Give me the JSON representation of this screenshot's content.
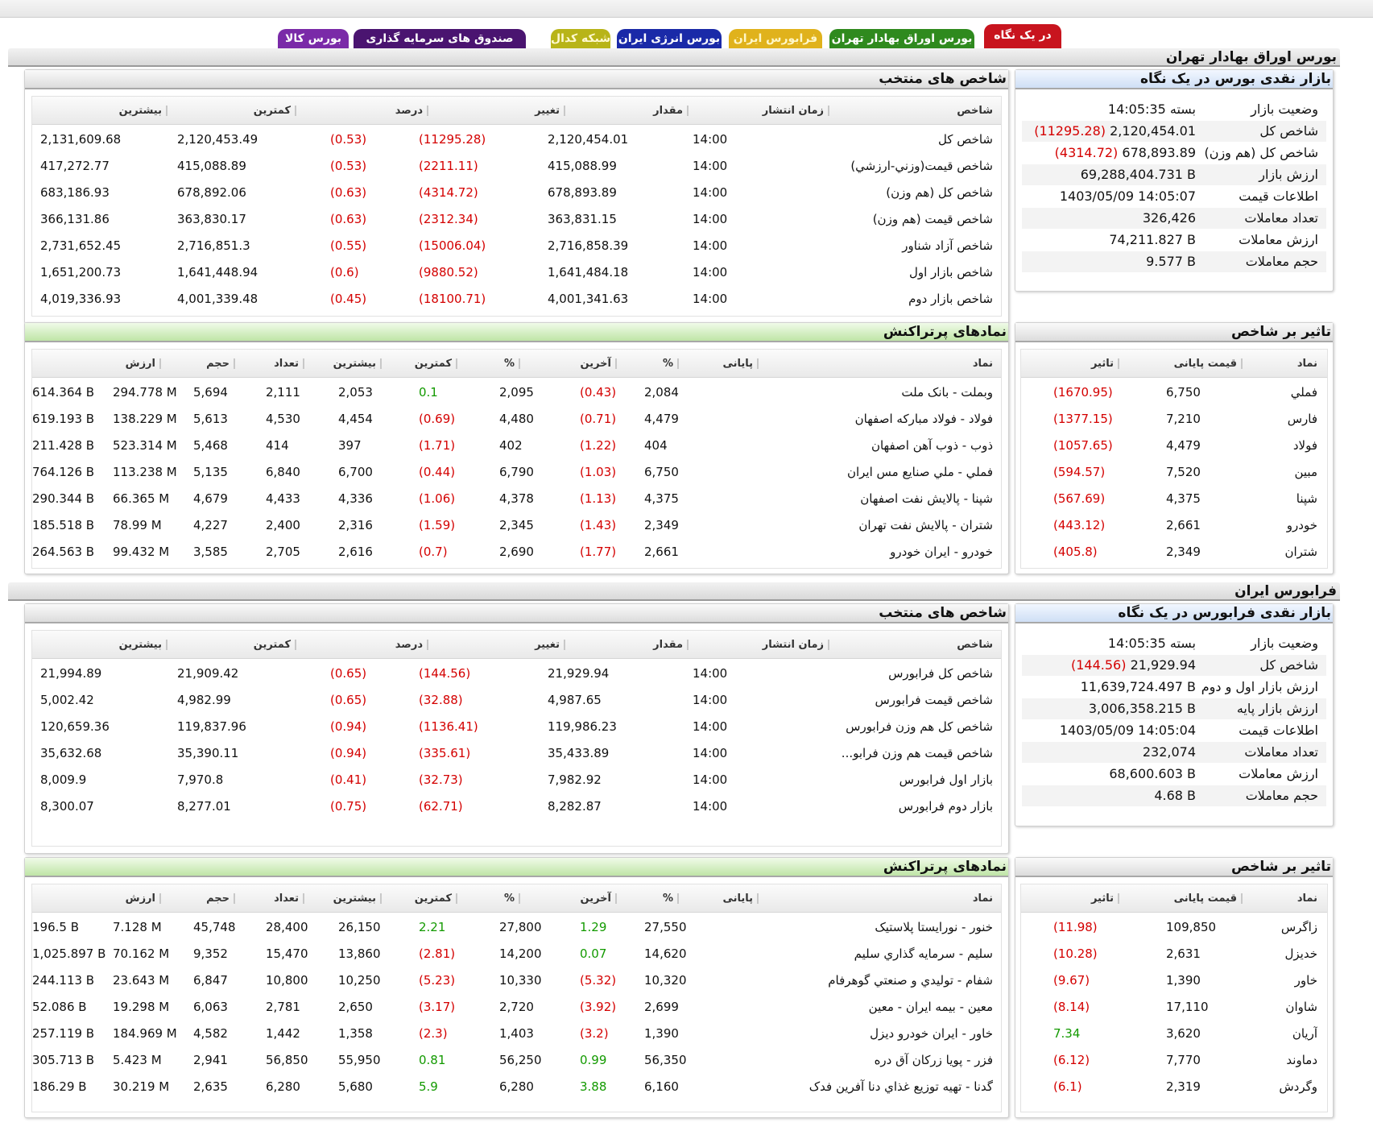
{
  "tabs": [
    {
      "label": "در یک نگاه",
      "bg": "#c8141e",
      "fg": "#ffffff",
      "active": true
    },
    {
      "label": "بورس اوراق بهادار تهران",
      "bg": "#2f8a1e",
      "fg": "#ffffff"
    },
    {
      "label": "فرابورس ایران",
      "bg": "#e0b21c",
      "fg": "#fff7c8"
    },
    {
      "label": "بورس انرژی ایران",
      "bg": "#1a2aa8",
      "fg": "#ffffff"
    },
    {
      "label": "شبکه کدال",
      "bg": "#b8b418",
      "fg": "#fff9d0"
    },
    {
      "label": "صندوق های سرمایه گذاری",
      "bg": "#4a1470",
      "fg": "#ffffff"
    },
    {
      "label": "بورس کالا",
      "bg": "#7a2aa8",
      "fg": "#ffffff"
    }
  ],
  "colors": {
    "negative": "#d40000",
    "positive": "#139a00"
  },
  "tse": {
    "title": "بورس اوراق بهادار تهران",
    "glance": {
      "title": "بازار نقدی بورس در یک نگاه",
      "rows": [
        {
          "label": "وضعیت بازار",
          "value": "بسته 14:05:35"
        },
        {
          "label": "شاخص کل",
          "value": "2,120,454.01",
          "change": "(11295.28)"
        },
        {
          "label": "شاخص کل (هم وزن)",
          "value": "678,893.89",
          "change": "(4314.72)"
        },
        {
          "label": "ارزش بازار",
          "value": "69,288,404.731 B"
        },
        {
          "label": "اطلاعات قیمت",
          "value": "1403/05/09 14:05:07"
        },
        {
          "label": "تعداد معاملات",
          "value": "326,426"
        },
        {
          "label": "ارزش معاملات",
          "value": "74,211.827 B"
        },
        {
          "label": "حجم معاملات",
          "value": "9.577 B"
        }
      ]
    },
    "indices": {
      "title": "شاخص های منتخب",
      "headers": [
        "شاخص",
        "زمان انتشار",
        "مقدار",
        "تغییر",
        "درصد",
        "کمترین",
        "بیشترین"
      ],
      "rows": [
        [
          "شاخص کل",
          "14:00",
          "2,120,454.01",
          "(11295.28)",
          "(0.53)",
          "2,120,453.49",
          "2,131,609.68"
        ],
        [
          "شاخص قیمت(وزني-ارزشي)",
          "14:00",
          "415,088.99",
          "(2211.11)",
          "(0.53)",
          "415,088.89",
          "417,272.77"
        ],
        [
          "شاخص کل (هم وزن)",
          "14:00",
          "678,893.89",
          "(4314.72)",
          "(0.63)",
          "678,892.06",
          "683,186.93"
        ],
        [
          "شاخص قیمت (هم وزن)",
          "14:00",
          "363,831.15",
          "(2312.34)",
          "(0.63)",
          "363,830.17",
          "366,131.86"
        ],
        [
          "شاخص آزاد شناور",
          "14:00",
          "2,716,858.39",
          "(15006.04)",
          "(0.55)",
          "2,716,851.3",
          "2,731,652.45"
        ],
        [
          "شاخص بازار اول",
          "14:00",
          "1,641,484.18",
          "(9880.52)",
          "(0.6)",
          "1,641,448.94",
          "1,651,200.73"
        ],
        [
          "شاخص بازار دوم",
          "14:00",
          "4,001,341.63",
          "(18100.71)",
          "(0.45)",
          "4,001,339.48",
          "4,019,336.93"
        ]
      ]
    },
    "impact": {
      "title": "تاثیر بر شاخص",
      "headers": [
        "نماد",
        "قیمت پایانی",
        "تاثیر"
      ],
      "rows": [
        [
          "فملي",
          "6,750",
          "(1670.95)"
        ],
        [
          "فارس",
          "7,210",
          "(1377.15)"
        ],
        [
          "فولاد",
          "4,479",
          "(1057.65)"
        ],
        [
          "مبين",
          "7,520",
          "(594.57)"
        ],
        [
          "شپنا",
          "4,375",
          "(567.69)"
        ],
        [
          "خودرو",
          "2,661",
          "(443.12)"
        ],
        [
          "شتران",
          "2,349",
          "(405.8)"
        ]
      ]
    },
    "active": {
      "title": "نمادهای پرتراکنش",
      "headers": [
        "نماد",
        "پایانی",
        "%",
        "آخرین",
        "%",
        "کمترین",
        "بیشترین",
        "تعداد",
        "حجم",
        "ارزش"
      ],
      "rows": [
        [
          "وبملت - بانک ملت",
          "2,084",
          "(0.43)",
          "2,095",
          "0.1",
          "2,053",
          "2,111",
          "5,694",
          "294.778 M",
          "614.364 B"
        ],
        [
          "فولاد - فولاد مبارکه اصفهان",
          "4,479",
          "(0.71)",
          "4,480",
          "(0.69)",
          "4,454",
          "4,530",
          "5,613",
          "138.229 M",
          "619.193 B"
        ],
        [
          "ذوب - ذوب آهن اصفهان",
          "404",
          "(1.22)",
          "402",
          "(1.71)",
          "397",
          "414",
          "5,468",
          "523.314 M",
          "211.428 B"
        ],
        [
          "فملي - ملي صنايع مس ايران",
          "6,750",
          "(1.03)",
          "6,790",
          "(0.44)",
          "6,700",
          "6,840",
          "5,135",
          "113.238 M",
          "764.126 B"
        ],
        [
          "شپنا - پالايش نفت اصفهان",
          "4,375",
          "(1.13)",
          "4,378",
          "(1.06)",
          "4,336",
          "4,433",
          "4,679",
          "66.365 M",
          "290.344 B"
        ],
        [
          "شتران - پالايش نفت تهران",
          "2,349",
          "(1.43)",
          "2,345",
          "(1.59)",
          "2,316",
          "2,400",
          "4,227",
          "78.99 M",
          "185.518 B"
        ],
        [
          "خودرو - ايران خودرو",
          "2,661",
          "(1.77)",
          "2,690",
          "(0.7)",
          "2,616",
          "2,705",
          "3,585",
          "99.432 M",
          "264.563 B"
        ]
      ]
    }
  },
  "ifb": {
    "title": "فرابورس ایران",
    "glance": {
      "title": "بازار نقدی فرابورس در یک نگاه",
      "rows": [
        {
          "label": "وضعیت بازار",
          "value": "بسته 14:05:35"
        },
        {
          "label": "شاخص کل",
          "value": "21,929.94",
          "change": "(144.56)"
        },
        {
          "label": "ارزش بازار اول و دوم",
          "value": "11,639,724.497 B"
        },
        {
          "label": "ارزش بازار پایه",
          "value": "3,006,358.215 B"
        },
        {
          "label": "اطلاعات قیمت",
          "value": "1403/05/09 14:05:04"
        },
        {
          "label": "تعداد معاملات",
          "value": "232,074"
        },
        {
          "label": "ارزش معاملات",
          "value": "68,600.603 B"
        },
        {
          "label": "حجم معاملات",
          "value": "4.68 B"
        }
      ]
    },
    "indices": {
      "title": "شاخص های منتخب",
      "headers": [
        "شاخص",
        "زمان انتشار",
        "مقدار",
        "تغییر",
        "درصد",
        "کمترین",
        "بیشترین"
      ],
      "rows": [
        [
          "شاخص کل فرابورس",
          "14:00",
          "21,929.94",
          "(144.56)",
          "(0.65)",
          "21,909.42",
          "21,994.89"
        ],
        [
          "شاخص قیمت فرابورس",
          "14:00",
          "4,987.65",
          "(32.88)",
          "(0.65)",
          "4,982.99",
          "5,002.42"
        ],
        [
          "شاخص کل هم وزن فرابورس",
          "14:00",
          "119,986.23",
          "(1136.41)",
          "(0.94)",
          "119,837.96",
          "120,659.36"
        ],
        [
          "شاخص قیمت هم وزن فرابو...",
          "14:00",
          "35,433.89",
          "(335.61)",
          "(0.94)",
          "35,390.11",
          "35,632.68"
        ],
        [
          "بازار اول فرابورس",
          "14:00",
          "7,982.92",
          "(32.73)",
          "(0.41)",
          "7,970.8",
          "8,009.9"
        ],
        [
          "بازار دوم فرابورس",
          "14:00",
          "8,282.87",
          "(62.71)",
          "(0.75)",
          "8,277.01",
          "8,300.07"
        ]
      ]
    },
    "impact": {
      "title": "تاثیر بر شاخص",
      "headers": [
        "نماد",
        "قیمت پایانی",
        "تاثیر"
      ],
      "rows": [
        [
          "زاگرس",
          "109,850",
          "(11.98)"
        ],
        [
          "خديزل",
          "2,631",
          "(10.28)"
        ],
        [
          "خاور",
          "1,390",
          "(9.67)"
        ],
        [
          "شاوان",
          "17,110",
          "(8.14)"
        ],
        [
          "آريان",
          "3,620",
          "7.34"
        ],
        [
          "دماوند",
          "7,770",
          "(6.12)"
        ],
        [
          "وگردش",
          "2,319",
          "(6.1)"
        ]
      ]
    },
    "active": {
      "title": "نمادهای پرتراکنش",
      "headers": [
        "نماد",
        "پایانی",
        "%",
        "آخرین",
        "%",
        "کمترین",
        "بیشترین",
        "تعداد",
        "حجم",
        "ارزش"
      ],
      "rows": [
        [
          "خنور - نورايستا پلاستيک",
          "27,550",
          "1.29",
          "27,800",
          "2.21",
          "26,150",
          "28,400",
          "45,748",
          "7.128 M",
          "196.5 B"
        ],
        [
          "سليم - سرمايه گذاري سليم",
          "14,620",
          "0.07",
          "14,200",
          "(2.81)",
          "13,860",
          "15,470",
          "9,352",
          "70.162 M",
          "1,025.897 B"
        ],
        [
          "شفام - توليدي و صنعتي گوهرفام",
          "10,320",
          "(5.32)",
          "10,330",
          "(5.23)",
          "10,250",
          "10,800",
          "6,847",
          "23.643 M",
          "244.113 B"
        ],
        [
          "معين - بيمه ايران - معين",
          "2,699",
          "(3.92)",
          "2,720",
          "(3.17)",
          "2,650",
          "2,781",
          "6,063",
          "19.298 M",
          "52.086 B"
        ],
        [
          "خاور - ايران خودرو ديزل",
          "1,390",
          "(3.2)",
          "1,403",
          "(2.3)",
          "1,358",
          "1,442",
          "4,582",
          "184.969 M",
          "257.119 B"
        ],
        [
          "فزر - پويا زركان آق دره",
          "56,350",
          "0.99",
          "56,250",
          "0.81",
          "55,950",
          "56,850",
          "2,941",
          "5.423 M",
          "305.713 B"
        ],
        [
          "گدنا - تهيه توزيع غذاي دنا آفرين فدک",
          "6,160",
          "3.88",
          "6,280",
          "5.9",
          "5,680",
          "6,280",
          "2,635",
          "30.219 M",
          "186.29 B"
        ]
      ]
    }
  }
}
